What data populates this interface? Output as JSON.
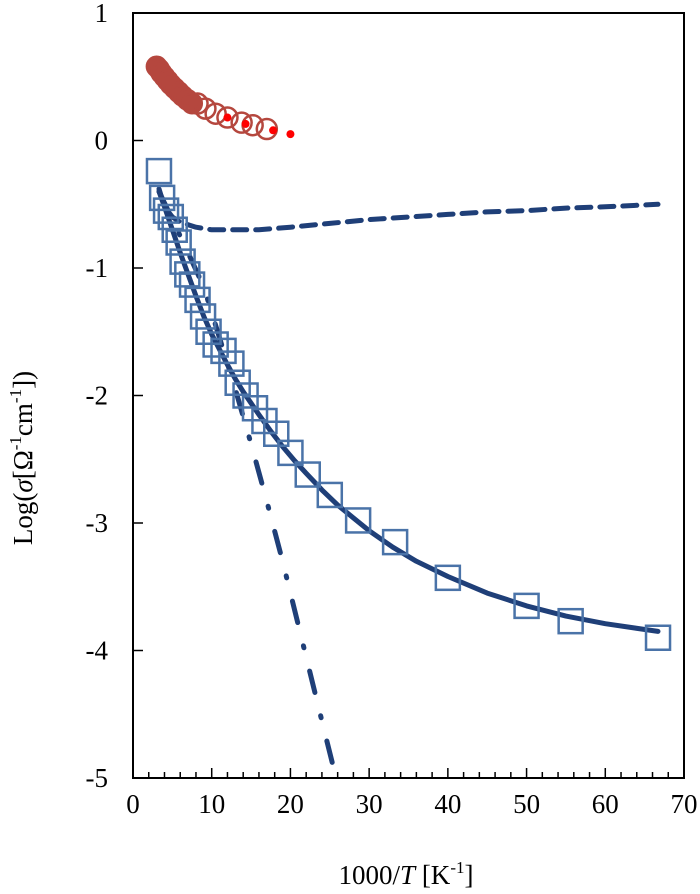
{
  "chart_data": {
    "type": "scatter",
    "title": "",
    "xlabel": {
      "pre": "1000/",
      "var": "T",
      "post": " [K",
      "sup": "-1",
      "end": "]"
    },
    "ylabel": {
      "pre": "Log(",
      "var": "σ",
      "p1": "[Ω",
      "s1": "-1",
      "p2": "cm",
      "s2": "-1",
      "end": "])"
    },
    "xlim": [
      0,
      70
    ],
    "ylim": [
      -5,
      1
    ],
    "xticks": [
      0,
      10,
      20,
      30,
      40,
      50,
      60,
      70
    ],
    "yticks": [
      1,
      0,
      -1,
      -2,
      -3,
      -4,
      -5
    ],
    "grid": false,
    "colors": {
      "red_circles": "#b5473e",
      "red_dots": "#ff0000",
      "blue_squares": "#4a73a8",
      "fit_lines": "#1f3f78"
    },
    "series": [
      {
        "marker": "circle-filled",
        "x": [
          3.0,
          3.3,
          3.6,
          4.0,
          4.4,
          4.8,
          5.3,
          5.8,
          6.3,
          6.9,
          7.5
        ],
        "y": [
          0.58,
          0.56,
          0.53,
          0.5,
          0.47,
          0.44,
          0.41,
          0.38,
          0.35,
          0.32,
          0.29
        ]
      },
      {
        "marker": "circle-open",
        "x": [
          8.2,
          9.2,
          10.5,
          12.0,
          13.8,
          15.2,
          17.0
        ],
        "y": [
          0.29,
          0.25,
          0.21,
          0.18,
          0.14,
          0.12,
          0.09
        ]
      },
      {
        "marker": "dot",
        "x": [
          12.0,
          14.3,
          17.8,
          20.0
        ],
        "y": [
          0.18,
          0.13,
          0.08,
          0.05
        ]
      },
      {
        "marker": "square-open",
        "x": [
          3.3,
          3.7,
          4.2,
          4.8,
          5.3,
          5.8,
          6.3,
          6.9,
          7.5,
          8.2,
          8.9,
          9.6,
          10.5,
          11.5,
          12.5,
          13.3,
          14.3,
          15.5,
          16.7,
          18.2,
          20.0,
          22.2,
          25.0,
          28.6,
          33.3,
          40.0,
          50.0,
          55.6,
          66.7
        ],
        "y": [
          -0.24,
          -0.45,
          -0.55,
          -0.6,
          -0.7,
          -0.8,
          -0.95,
          -1.05,
          -1.13,
          -1.25,
          -1.38,
          -1.5,
          -1.6,
          -1.65,
          -1.75,
          -1.9,
          -2.0,
          -2.1,
          -2.2,
          -2.3,
          -2.45,
          -2.62,
          -2.78,
          -2.98,
          -3.15,
          -3.43,
          -3.65,
          -3.77,
          -3.9
        ]
      },
      {
        "style": "solid",
        "x": [
          3.3,
          4.0,
          5.0,
          6.0,
          7.0,
          8.0,
          9.0,
          10.0,
          11.0,
          12.0,
          13.0,
          14.0,
          15.0,
          16.0,
          17.5,
          19.0,
          20.5,
          22.0,
          24.0,
          26.0,
          28.0,
          30.0,
          33.0,
          36.0,
          40.0,
          45.0,
          50.0,
          55.0,
          60.0,
          66.7
        ],
        "y": [
          -0.38,
          -0.52,
          -0.7,
          -0.88,
          -1.05,
          -1.22,
          -1.38,
          -1.52,
          -1.64,
          -1.76,
          -1.87,
          -1.97,
          -2.06,
          -2.15,
          -2.28,
          -2.4,
          -2.51,
          -2.61,
          -2.74,
          -2.86,
          -2.96,
          -3.06,
          -3.19,
          -3.3,
          -3.42,
          -3.55,
          -3.65,
          -3.73,
          -3.79,
          -3.85
        ]
      },
      {
        "style": "dashed",
        "x": [
          3.3,
          4.0,
          5.0,
          6.0,
          7.0,
          8.0,
          10.0,
          12.0,
          14.0,
          16.0,
          18.0,
          20.0,
          25.0,
          30.0,
          35.0,
          40.0,
          45.0,
          50.0,
          55.0,
          60.0,
          66.7
        ],
        "y": [
          -0.4,
          -0.52,
          -0.6,
          -0.64,
          -0.66,
          -0.68,
          -0.7,
          -0.7,
          -0.7,
          -0.7,
          -0.69,
          -0.68,
          -0.65,
          -0.62,
          -0.6,
          -0.58,
          -0.56,
          -0.55,
          -0.53,
          -0.52,
          -0.5
        ]
      },
      {
        "style": "dash-dot",
        "x": [
          3.3,
          5.0,
          7.0,
          9.0,
          11.0,
          13.0,
          15.0,
          17.0,
          19.0,
          21.0,
          23.0,
          24.5,
          25.8
        ],
        "y": [
          -0.4,
          -0.62,
          -0.88,
          -1.15,
          -1.55,
          -1.95,
          -2.38,
          -2.83,
          -3.3,
          -3.8,
          -4.3,
          -4.68,
          -5.0
        ]
      }
    ]
  }
}
